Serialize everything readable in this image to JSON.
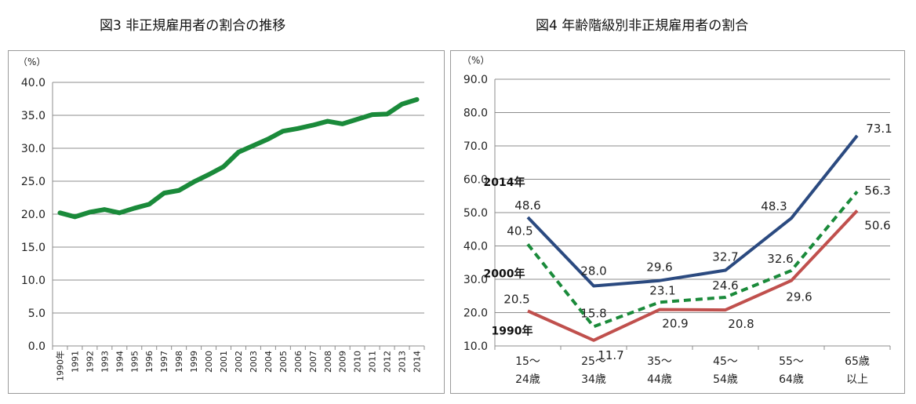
{
  "chart_data": [
    {
      "type": "line",
      "title": "図3 非正規雇用者の割合の推移",
      "ylabel": "（%）",
      "ylim": [
        0,
        40
      ],
      "yticks": [
        "0.0",
        "5.0",
        "10.0",
        "15.0",
        "20.0",
        "25.0",
        "30.0",
        "35.0",
        "40.0"
      ],
      "grid": true,
      "legend": "none",
      "categories": [
        "1990年",
        "1991",
        "1992",
        "1993",
        "1994",
        "1995",
        "1996",
        "1997",
        "1998",
        "1999",
        "2000",
        "2001",
        "2002",
        "2003",
        "2004",
        "2005",
        "2006",
        "2007",
        "2008",
        "2009",
        "2010",
        "2011",
        "2012",
        "2013",
        "2014"
      ],
      "series": [
        {
          "color": "#1a8a3a",
          "values": [
            20.2,
            19.6,
            20.3,
            20.7,
            20.2,
            20.9,
            21.5,
            23.2,
            23.6,
            24.9,
            26.0,
            27.2,
            29.4,
            30.4,
            31.4,
            32.6,
            33.0,
            33.5,
            34.1,
            33.7,
            34.4,
            35.1,
            35.2,
            36.7,
            37.4
          ]
        }
      ]
    },
    {
      "type": "line",
      "title": "図4 年齢階級別非正規雇用者の割合",
      "ylabel": "（%）",
      "ylim": [
        10,
        90
      ],
      "yticks": [
        "10.0",
        "20.0",
        "30.0",
        "40.0",
        "50.0",
        "60.0",
        "70.0",
        "80.0",
        "90.0"
      ],
      "grid": true,
      "legend": "inline",
      "categories": [
        {
          "line1": "15～",
          "line2": "24歳"
        },
        {
          "line1": "25～",
          "line2": "34歳"
        },
        {
          "line1": "35～",
          "line2": "44歳"
        },
        {
          "line1": "45～",
          "line2": "54歳"
        },
        {
          "line1": "55～",
          "line2": "64歳"
        },
        {
          "line1": "65歳",
          "line2": "以上"
        }
      ],
      "series": [
        {
          "name": "2014年",
          "color": "#2b4a80",
          "dash": false,
          "values": [
            48.6,
            28.0,
            29.6,
            32.7,
            48.3,
            73.1
          ],
          "labels": [
            "48.6",
            "28.0",
            "29.6",
            "32.7",
            "48.3",
            "73.1"
          ]
        },
        {
          "name": "2000年",
          "color": "#1a8a3a",
          "dash": true,
          "values": [
            40.5,
            15.8,
            23.1,
            24.6,
            32.6,
            56.3
          ],
          "labels": [
            "40.5",
            "15.8",
            "23.1",
            "24.6",
            "32.6",
            "56.3"
          ]
        },
        {
          "name": "1990年",
          "color": "#c0504d",
          "dash": false,
          "values": [
            20.5,
            11.7,
            20.9,
            20.8,
            29.6,
            50.6
          ],
          "labels": [
            "20.5",
            "11.7",
            "20.9",
            "20.8",
            "29.6",
            "50.6"
          ]
        }
      ]
    }
  ]
}
